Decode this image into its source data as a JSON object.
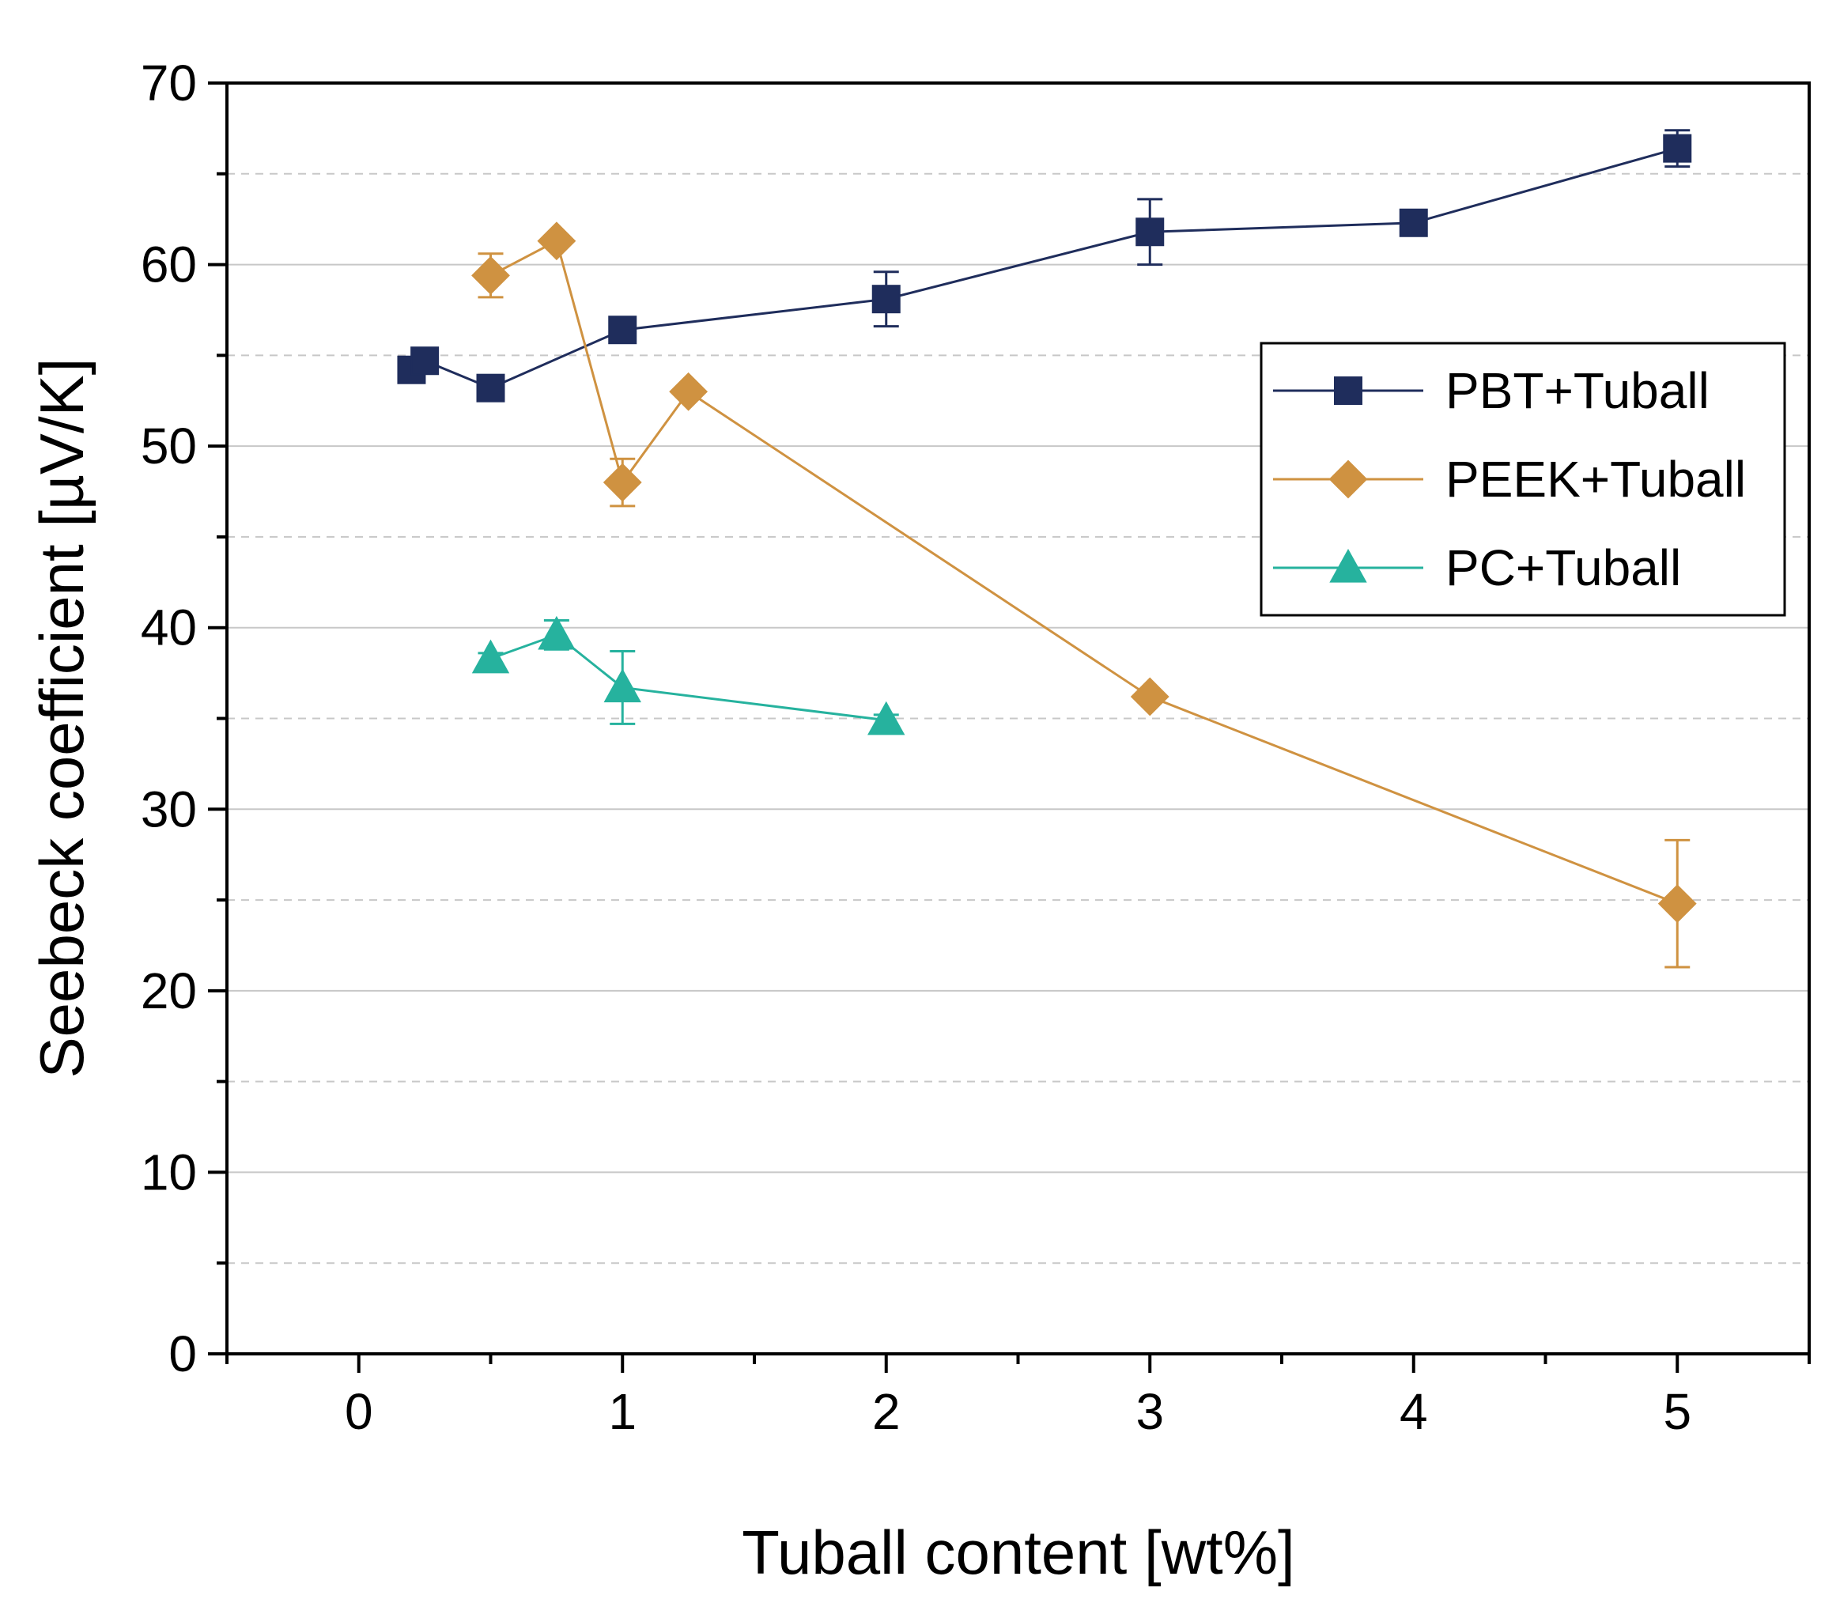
{
  "chart_data": {
    "type": "line",
    "title": "",
    "xlabel": "Tuball content [wt%]",
    "ylabel": "Seebeck coefficient [µV/K]",
    "xlim": [
      -0.5,
      5.5
    ],
    "ylim": [
      0,
      70
    ],
    "x_ticks": [
      0,
      1,
      2,
      3,
      4,
      5
    ],
    "x_tick_labels": [
      "0",
      "1",
      "2",
      "3",
      "4",
      "5"
    ],
    "y_ticks": [
      0,
      10,
      20,
      30,
      40,
      50,
      60,
      70
    ],
    "y_tick_labels": [
      "0",
      "10",
      "20",
      "30",
      "40",
      "50",
      "60",
      "70"
    ],
    "grid": true,
    "legend_position": "right",
    "series": [
      {
        "name": "PBT+Tuball",
        "color": "#1f2d5c",
        "marker": "square",
        "x": [
          0.2,
          0.25,
          0.5,
          1,
          2,
          3,
          4,
          5
        ],
        "y": [
          54.2,
          54.7,
          53.2,
          56.4,
          58.1,
          61.8,
          62.3,
          66.4
        ],
        "error": [
          0.4,
          0.4,
          0.4,
          0.4,
          1.5,
          1.8,
          0.4,
          1.0
        ]
      },
      {
        "name": "PEEK+Tuball",
        "color": "#cf9241",
        "marker": "diamond",
        "x": [
          0.5,
          0.75,
          1,
          1.25,
          3,
          5
        ],
        "y": [
          59.4,
          61.3,
          48.0,
          53.0,
          36.2,
          24.8
        ],
        "error": [
          1.2,
          0.3,
          1.3,
          0.3,
          0.3,
          3.5
        ]
      },
      {
        "name": "PC+Tuball",
        "color": "#26b29e",
        "marker": "triangle",
        "x": [
          0.5,
          0.75,
          1,
          2
        ],
        "y": [
          38.3,
          39.6,
          36.7,
          34.9
        ],
        "error": [
          0.3,
          0.8,
          2.0,
          0.3
        ]
      }
    ]
  }
}
